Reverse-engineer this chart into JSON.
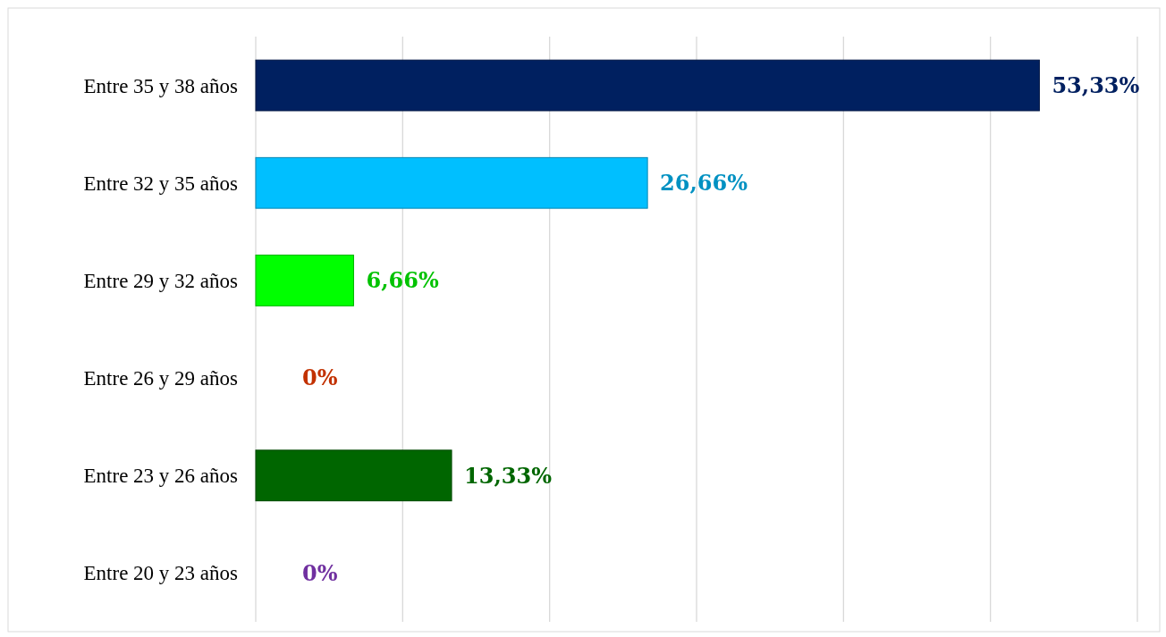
{
  "chart_data": {
    "type": "bar",
    "orientation": "horizontal",
    "categories": [
      "Entre 35 y 38 años",
      "Entre 32 y 35 años",
      "Entre 29 y 32 años",
      "Entre 26 y 29 años",
      "Entre 23 y 26 años",
      "Entre 20 y 23 años"
    ],
    "values": [
      53.33,
      26.66,
      6.66,
      0,
      13.33,
      0
    ],
    "colors": [
      "#002060",
      "#00bfff",
      "#00ff00",
      "#ff4000",
      "#006600",
      "#7030a0"
    ],
    "value_labels": [
      "53,33%",
      "26,66%",
      "6,66%",
      "0%",
      "13,33%",
      "0%"
    ],
    "xlim": [
      0,
      60
    ],
    "xticks": [
      {
        "value": 0,
        "label": null
      },
      {
        "value": 10,
        "label": null
      },
      {
        "value": 20,
        "label": null
      },
      {
        "value": 30,
        "label": null
      },
      {
        "value": 40,
        "label": null
      },
      {
        "value": 50,
        "label": null
      },
      {
        "value": 60,
        "label": null
      }
    ],
    "grid": "x"
  }
}
